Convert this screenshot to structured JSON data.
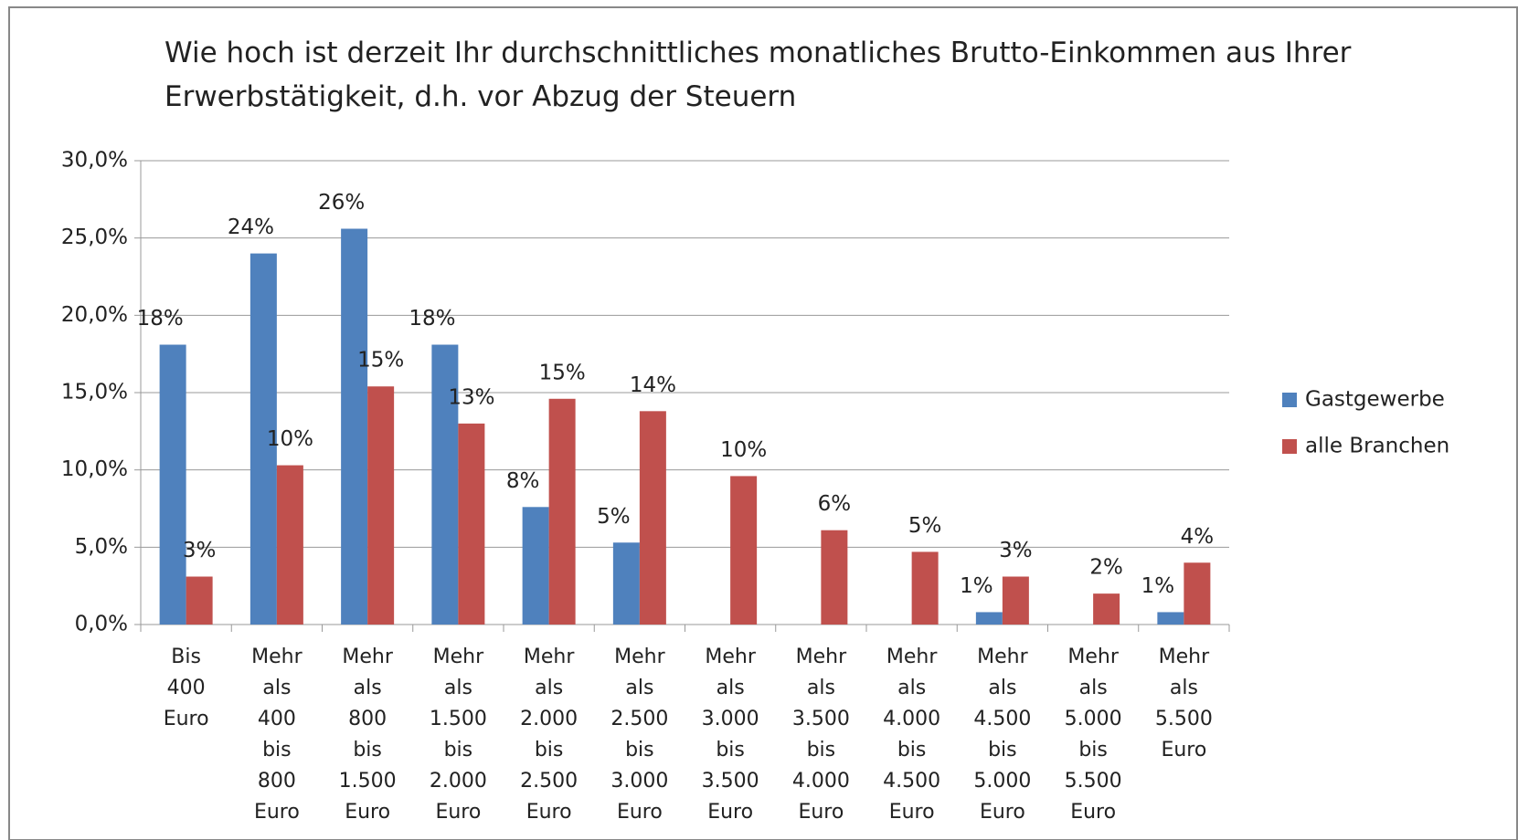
{
  "chart_data": {
    "type": "bar",
    "title": "Wie hoch ist derzeit Ihr durchschnittliches monatliches Brutto-Einkommen aus Ihrer Erwerbstätigkeit, d.h. vor Abzug der Steuern",
    "categories": [
      "Bis 400 Euro",
      "Mehr als 400 bis 800 Euro",
      "Mehr als 800 bis 1.500 Euro",
      "Mehr als 1.500 bis 2.000 Euro",
      "Mehr als 2.000 bis 2.500 Euro",
      "Mehr als 2.500 bis 3.000 Euro",
      "Mehr als 3.000 bis 3.500 Euro",
      "Mehr als 3.500 bis 4.000 Euro",
      "Mehr als 4.000 bis 4.500 Euro",
      "Mehr als 4.500 bis 5.000 Euro",
      "Mehr als 5.000 bis 5.500 Euro",
      "Mehr als 5.500 Euro"
    ],
    "series": [
      {
        "name": "Gastgewerbe",
        "color": "#4f81bd",
        "values": [
          18.1,
          24.0,
          25.6,
          18.1,
          7.6,
          5.3,
          null,
          null,
          null,
          0.8,
          null,
          0.8
        ],
        "value_labels": [
          "18%",
          "24%",
          "26%",
          "18%",
          "8%",
          "5%",
          null,
          null,
          null,
          "1%",
          null,
          "1%"
        ]
      },
      {
        "name": "alle Branchen",
        "color": "#c0504d",
        "values": [
          3.1,
          10.3,
          15.4,
          13.0,
          14.6,
          13.8,
          9.6,
          6.1,
          4.7,
          3.1,
          2.0,
          4.0
        ],
        "value_labels": [
          "3%",
          "10%",
          "15%",
          "13%",
          "15%",
          "14%",
          "10%",
          "6%",
          "5%",
          "3%",
          "2%",
          "4%"
        ]
      }
    ],
    "ylim": [
      0,
      30
    ],
    "yticks": [
      {
        "value": 0,
        "label": "0,0%"
      },
      {
        "value": 5,
        "label": "5,0%"
      },
      {
        "value": 10,
        "label": "10,0%"
      },
      {
        "value": 15,
        "label": "15,0%"
      },
      {
        "value": 20,
        "label": "20,0%"
      },
      {
        "value": 25,
        "label": "25,0%"
      },
      {
        "value": 30,
        "label": "30,0%"
      }
    ],
    "grid": true,
    "legend": "right"
  }
}
